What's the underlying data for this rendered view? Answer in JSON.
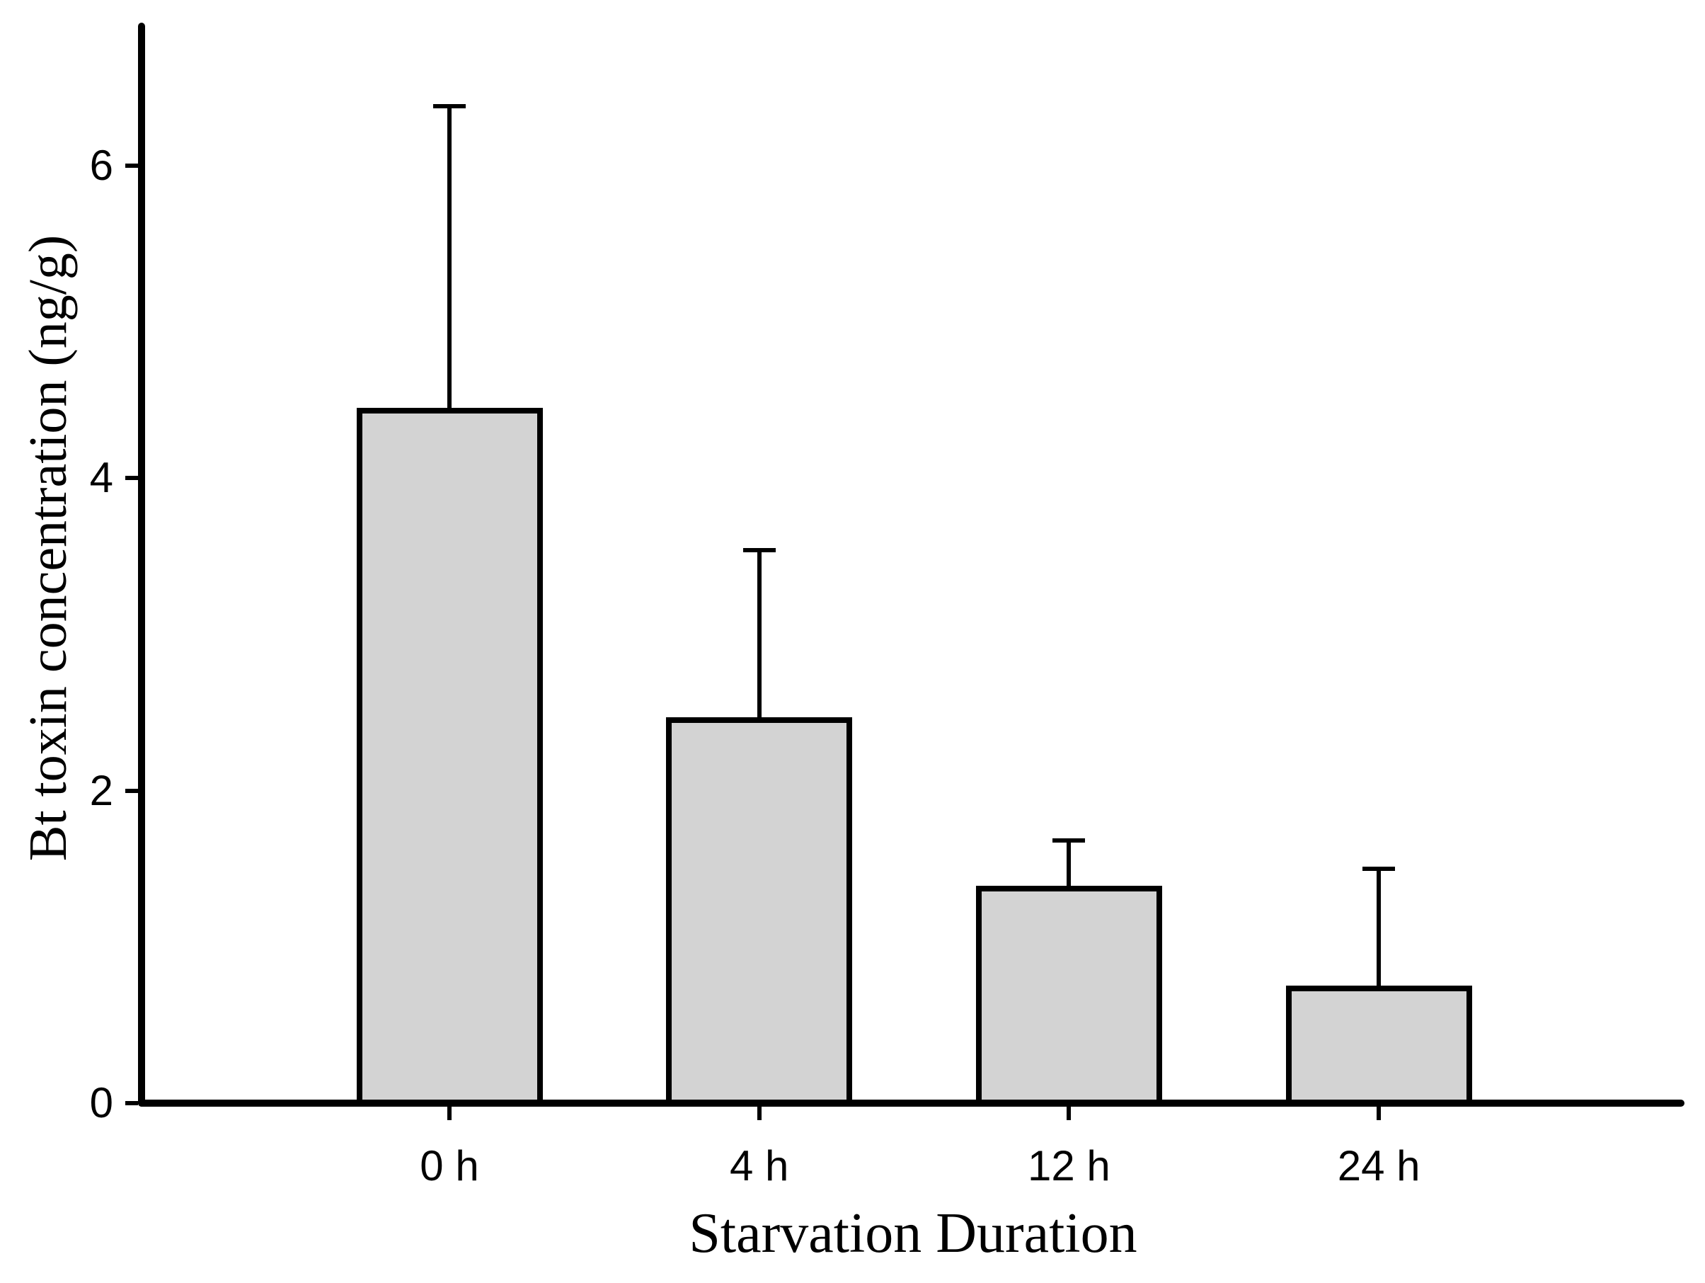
{
  "chart_data": {
    "type": "bar",
    "title": "",
    "xlabel": "Starvation Duration",
    "ylabel": "Bt toxin concentration (ng/g)",
    "categories": [
      "0 h",
      "4 h",
      "12 h",
      "24 h"
    ],
    "values": [
      4.45,
      2.47,
      1.39,
      0.75
    ],
    "error_plus": [
      1.93,
      1.07,
      0.29,
      0.75
    ],
    "error_bar_tops": [
      6.38,
      3.54,
      1.68,
      1.5
    ],
    "yticks": [
      "0",
      "2",
      "4",
      "6"
    ],
    "ylim": [
      0,
      6.9
    ],
    "grid": false,
    "legend_position": "none",
    "bar_fill_color": "#d3d3d3",
    "bar_edge_color": "#000000",
    "axis_color": "#000000"
  }
}
